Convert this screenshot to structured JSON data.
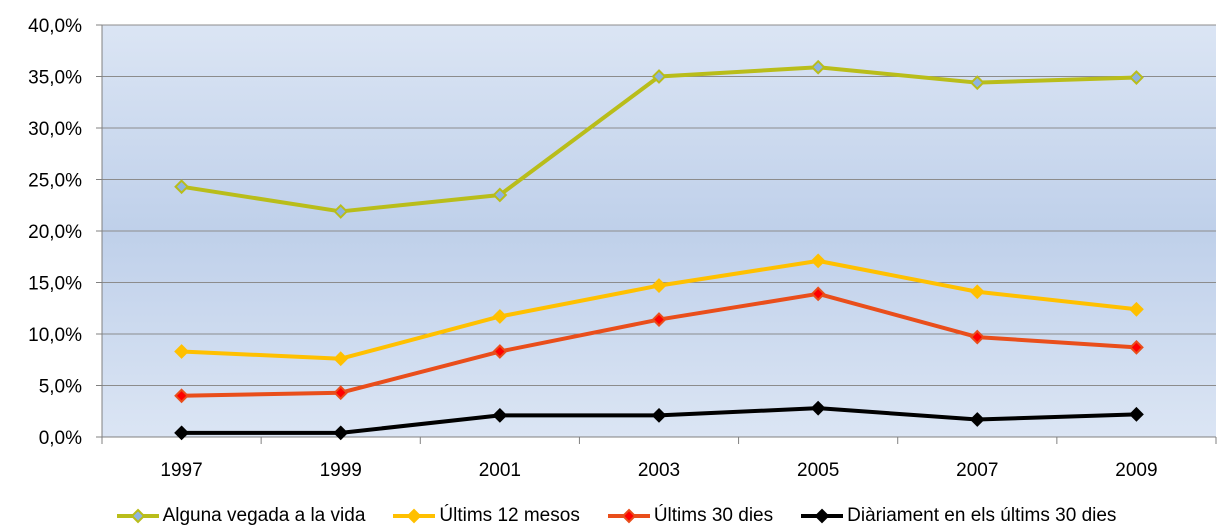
{
  "chart_data": {
    "type": "line",
    "categories": [
      "1997",
      "1999",
      "2001",
      "2003",
      "2005",
      "2007",
      "2009"
    ],
    "series": [
      {
        "name": "Alguna vegada a la vida",
        "values": [
          24.3,
          21.9,
          23.5,
          35.0,
          35.9,
          34.4,
          34.9
        ],
        "color": "#b9bd1a",
        "marker_fill": "#8db3e2",
        "marker_stroke": "#b9bd1a"
      },
      {
        "name": "Últims 12 mesos",
        "values": [
          8.3,
          7.6,
          11.7,
          14.7,
          17.1,
          14.1,
          12.4
        ],
        "color": "#ffc000",
        "marker_fill": "#ffc000",
        "marker_stroke": "#ffc000"
      },
      {
        "name": "Últims 30 dies",
        "values": [
          4.0,
          4.3,
          8.3,
          11.4,
          13.9,
          9.7,
          8.7
        ],
        "color": "#e94e1b",
        "marker_fill": "#ff0000",
        "marker_stroke": "#e94e1b"
      },
      {
        "name": "Diàriament en els últims 30 dies",
        "values": [
          0.4,
          0.4,
          2.1,
          2.1,
          2.8,
          1.7,
          2.2
        ],
        "color": "#000000",
        "marker_fill": "#000000",
        "marker_stroke": "#000000"
      }
    ],
    "yticks": [
      "0,0%",
      "5,0%",
      "10,0%",
      "15,0%",
      "20,0%",
      "25,0%",
      "30,0%",
      "35,0%",
      "40,0%"
    ],
    "ylim": [
      0,
      40
    ],
    "grid": true,
    "legend_position": "bottom",
    "title": "",
    "xlabel": "",
    "ylabel": ""
  }
}
